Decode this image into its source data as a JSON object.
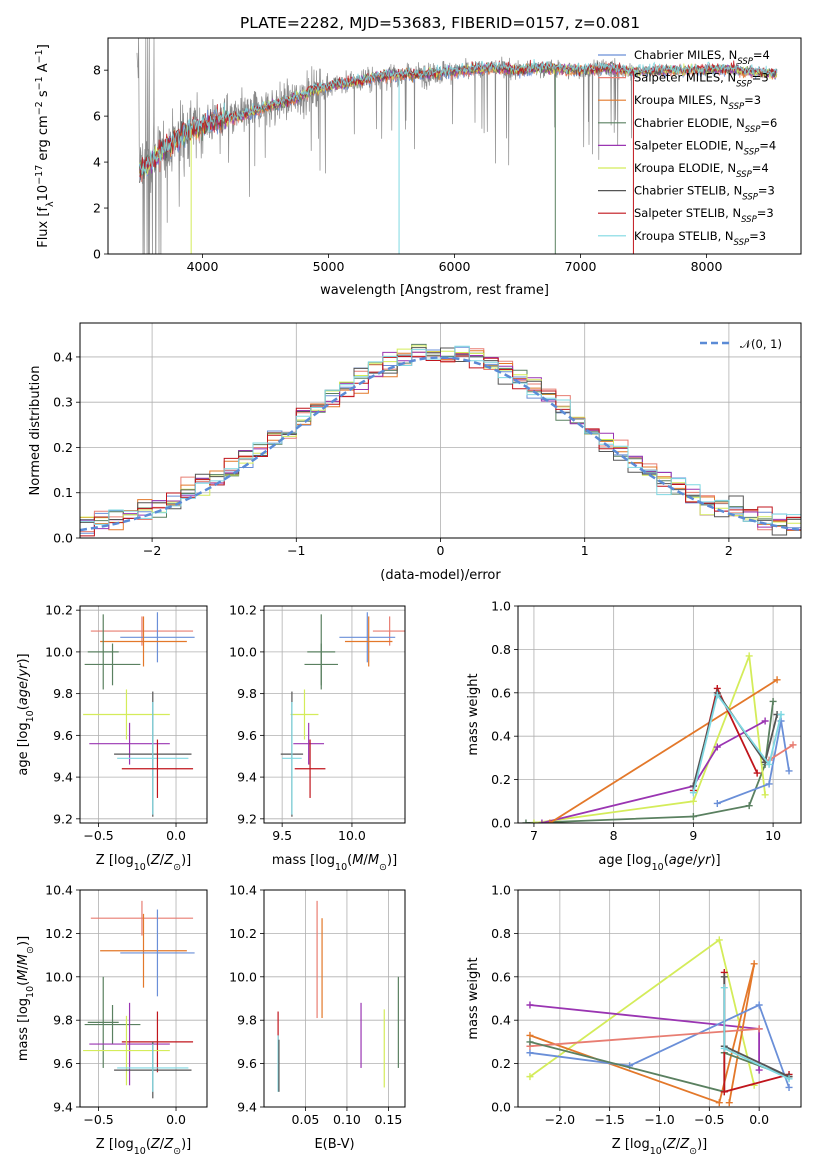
{
  "figure": {
    "title": "PLATE=2282, MJD=53683, FIBERID=0157, z=0.081"
  },
  "colors": {
    "Chabrier MILES": "#6a8fd8",
    "Salpeter MILES": "#e87d72",
    "Kroupa MILES": "#e3782a",
    "Chabrier ELODIE": "#5a8060",
    "Salpeter ELODIE": "#9a35b2",
    "Kroupa ELODIE": "#d4ec5a",
    "Chabrier STELIB": "#555555",
    "Salpeter STELIB": "#c0151c",
    "Kroupa STELIB": "#7fd8e2",
    "data": "#888888",
    "gauss": "#5b8bd6"
  },
  "chart_data": [
    {
      "id": "spectrum",
      "type": "line",
      "xlabel": "wavelength [Angstrom, rest frame]",
      "ylabel": "Flux [f_λ 10^-17 erg cm^-2 s^-1 A^-1]",
      "xlim": [
        3250,
        8750
      ],
      "ylim": [
        0,
        9.4
      ],
      "xticks": [
        4000,
        5000,
        6000,
        7000,
        8000
      ],
      "yticks": [
        0,
        2,
        4,
        6,
        8
      ],
      "legend_position": "right",
      "legend": [
        {
          "name": "Chabrier MILES",
          "nssp": "4"
        },
        {
          "name": "Salpeter MILES",
          "nssp": "3"
        },
        {
          "name": "Kroupa MILES",
          "nssp": "3"
        },
        {
          "name": "Chabrier ELODIE",
          "nssp": "6"
        },
        {
          "name": "Salpeter ELODIE",
          "nssp": "4"
        },
        {
          "name": "Kroupa ELODIE",
          "nssp": "4"
        },
        {
          "name": "Chabrier STELIB",
          "nssp": "3"
        },
        {
          "name": "Salpeter STELIB",
          "nssp": "3"
        },
        {
          "name": "Kroupa STELIB",
          "nssp": "3"
        }
      ],
      "continuum": [
        [
          3500,
          3.6
        ],
        [
          3700,
          4.6
        ],
        [
          3900,
          5.4
        ],
        [
          4100,
          5.8
        ],
        [
          4300,
          6.0
        ],
        [
          4500,
          6.4
        ],
        [
          4700,
          6.7
        ],
        [
          4900,
          7.2
        ],
        [
          5100,
          7.4
        ],
        [
          5300,
          7.6
        ],
        [
          5500,
          7.8
        ],
        [
          5700,
          7.8
        ],
        [
          5900,
          7.9
        ],
        [
          6100,
          8.0
        ],
        [
          6300,
          8.1
        ],
        [
          6500,
          8.0
        ],
        [
          6700,
          8.1
        ],
        [
          7000,
          8.0
        ],
        [
          7200,
          8.1
        ],
        [
          7400,
          7.95
        ],
        [
          7800,
          8.0
        ],
        [
          8200,
          8.05
        ],
        [
          8500,
          7.85
        ]
      ],
      "data_range": [
        3480,
        7430
      ]
    },
    {
      "id": "residuals",
      "type": "bar",
      "xlabel": "(data-model)/error",
      "ylabel": "Normed distribution",
      "xlim": [
        -2.5,
        2.5
      ],
      "ylim": [
        0,
        0.475
      ],
      "xticks": [
        -2,
        -1,
        0,
        1,
        2
      ],
      "yticks": [
        0.0,
        0.1,
        0.2,
        0.3,
        0.4
      ],
      "legend": [
        "𝒩(0, 1)"
      ],
      "legend_position": "top-right",
      "bin_width": 0.1
    },
    {
      "id": "age_vs_Z",
      "type": "scatter",
      "xlabel": "Z [log10(Z/Z☉)]",
      "ylabel": "age [log10(age/yr)]",
      "xlim": [
        -0.62,
        0.2
      ],
      "ylim": [
        9.18,
        10.22
      ],
      "xticks": [
        -0.5,
        0.0
      ],
      "yticks": [
        9.2,
        9.4,
        9.6,
        9.8,
        10.0,
        10.2
      ],
      "points": [
        {
          "model": "Salpeter MILES",
          "x": -0.22,
          "xerr": 0.33,
          "y": 10.1,
          "yerr": 0.07
        },
        {
          "model": "Chabrier MILES",
          "x": -0.12,
          "xerr": 0.24,
          "y": 10.07,
          "yerr": 0.12
        },
        {
          "model": "Kroupa MILES",
          "x": -0.21,
          "xerr": 0.28,
          "y": 10.05,
          "yerr": 0.12
        },
        {
          "model": "Chabrier ELODIE",
          "x": -0.47,
          "xerr": 0.1,
          "y": 10.0,
          "yerr": 0.18
        },
        {
          "model": "Chabrier ELODIE",
          "x": -0.41,
          "xerr": 0.18,
          "y": 9.94,
          "yerr": 0.1
        },
        {
          "model": "Kroupa ELODIE",
          "x": -0.32,
          "xerr": 0.28,
          "y": 9.7,
          "yerr": 0.12
        },
        {
          "model": "Salpeter ELODIE",
          "x": -0.3,
          "xerr": 0.26,
          "y": 9.56,
          "yerr": 0.1
        },
        {
          "model": "Chabrier STELIB",
          "x": -0.15,
          "xerr": 0.25,
          "y": 9.51,
          "yerr": 0.3
        },
        {
          "model": "Kroupa STELIB",
          "x": -0.15,
          "xerr": 0.23,
          "y": 9.49,
          "yerr": 0.27
        },
        {
          "model": "Salpeter STELIB",
          "x": -0.12,
          "xerr": 0.23,
          "y": 9.44,
          "yerr": 0.14
        }
      ]
    },
    {
      "id": "age_vs_mass",
      "type": "scatter",
      "xlabel": "mass [log10(M/M☉)]",
      "ylabel": "",
      "xlim": [
        9.37,
        10.38
      ],
      "ylim": [
        9.18,
        10.22
      ],
      "xticks": [
        9.5,
        10.0
      ],
      "yticks": [
        9.2,
        9.4,
        9.6,
        9.8,
        10.0,
        10.2
      ],
      "points": [
        {
          "model": "Salpeter MILES",
          "x": 10.27,
          "xerr": 0.12,
          "y": 10.1,
          "yerr": 0.07
        },
        {
          "model": "Chabrier MILES",
          "x": 10.11,
          "xerr": 0.2,
          "y": 10.07,
          "yerr": 0.12
        },
        {
          "model": "Kroupa MILES",
          "x": 10.12,
          "xerr": 0.17,
          "y": 10.05,
          "yerr": 0.12
        },
        {
          "model": "Chabrier ELODIE",
          "x": 9.78,
          "xerr": 0.1,
          "y": 10.0,
          "yerr": 0.18
        },
        {
          "model": "Chabrier ELODIE",
          "x": 9.78,
          "xerr": 0.12,
          "y": 9.94,
          "yerr": 0.1
        },
        {
          "model": "Kroupa ELODIE",
          "x": 9.66,
          "xerr": 0.1,
          "y": 9.7,
          "yerr": 0.12
        },
        {
          "model": "Salpeter ELODIE",
          "x": 9.69,
          "xerr": 0.11,
          "y": 9.56,
          "yerr": 0.1
        },
        {
          "model": "Chabrier STELIB",
          "x": 9.57,
          "xerr": 0.08,
          "y": 9.51,
          "yerr": 0.3
        },
        {
          "model": "Kroupa STELIB",
          "x": 9.57,
          "xerr": 0.07,
          "y": 9.49,
          "yerr": 0.27
        },
        {
          "model": "Salpeter STELIB",
          "x": 9.7,
          "xerr": 0.11,
          "y": 9.44,
          "yerr": 0.14
        }
      ]
    },
    {
      "id": "weight_vs_age",
      "type": "line",
      "xlabel": "age [log10(age/yr)]",
      "ylabel": "mass weight",
      "xlim": [
        6.8,
        10.35
      ],
      "ylim": [
        0,
        1.0
      ],
      "xticks": [
        7,
        8,
        9,
        10
      ],
      "yticks": [
        0.0,
        0.2,
        0.4,
        0.6,
        0.8,
        1.0
      ],
      "series": [
        {
          "model": "Chabrier ELODIE",
          "x": [
            6.9,
            9.0,
            9.7,
            9.9,
            10.0
          ],
          "y": [
            0.0,
            0.03,
            0.08,
            0.27,
            0.56
          ]
        },
        {
          "model": "Kroupa ELODIE",
          "x": [
            7.0,
            9.0,
            9.7,
            9.9
          ],
          "y": [
            0.0,
            0.1,
            0.77,
            0.13
          ]
        },
        {
          "model": "Salpeter ELODIE",
          "x": [
            7.1,
            9.0,
            9.3,
            9.9
          ],
          "y": [
            0.0,
            0.17,
            0.35,
            0.47
          ]
        },
        {
          "model": "Kroupa MILES",
          "x": [
            7.2,
            10.05
          ],
          "y": [
            0.0,
            0.66
          ]
        },
        {
          "model": "Chabrier MILES",
          "x": [
            9.3,
            9.95,
            10.1,
            10.2
          ],
          "y": [
            0.09,
            0.18,
            0.47,
            0.24
          ]
        },
        {
          "model": "Salpeter MILES",
          "x": [
            9.95,
            10.25
          ],
          "y": [
            0.29,
            0.36
          ]
        },
        {
          "model": "Salpeter STELIB",
          "x": [
            9.0,
            9.3,
            9.8
          ],
          "y": [
            0.15,
            0.62,
            0.23
          ]
        },
        {
          "model": "Chabrier STELIB",
          "x": [
            9.0,
            9.3,
            9.9,
            10.05
          ],
          "y": [
            0.17,
            0.6,
            0.28,
            0.5
          ]
        },
        {
          "model": "Kroupa STELIB",
          "x": [
            9.0,
            9.3,
            9.95,
            10.1
          ],
          "y": [
            0.14,
            0.59,
            0.27,
            0.5
          ]
        }
      ]
    },
    {
      "id": "mass_vs_Z",
      "type": "scatter",
      "xlabel": "Z [log10(Z/Z☉)]",
      "ylabel": "mass [log10(M/M☉)]",
      "xlim": [
        -0.62,
        0.2
      ],
      "ylim": [
        9.4,
        10.4
      ],
      "xticks": [
        -0.5,
        0.0
      ],
      "yticks": [
        9.4,
        9.6,
        9.8,
        10.0,
        10.2,
        10.4
      ],
      "points": [
        {
          "model": "Salpeter MILES",
          "x": -0.22,
          "xerr": 0.33,
          "y": 10.27,
          "yerr": 0.08
        },
        {
          "model": "Kroupa MILES",
          "x": -0.21,
          "xerr": 0.28,
          "y": 10.12,
          "yerr": 0.17
        },
        {
          "model": "Chabrier MILES",
          "x": -0.12,
          "xerr": 0.24,
          "y": 10.11,
          "yerr": 0.2
        },
        {
          "model": "Chabrier ELODIE",
          "x": -0.47,
          "xerr": 0.1,
          "y": 9.79,
          "yerr": 0.21
        },
        {
          "model": "Chabrier ELODIE",
          "x": -0.41,
          "xerr": 0.18,
          "y": 9.78,
          "yerr": 0.09
        },
        {
          "model": "Salpeter ELODIE",
          "x": -0.3,
          "xerr": 0.26,
          "y": 9.69,
          "yerr": 0.19
        },
        {
          "model": "Salpeter STELIB",
          "x": -0.12,
          "xerr": 0.23,
          "y": 9.7,
          "yerr": 0.14
        },
        {
          "model": "Kroupa ELODIE",
          "x": -0.32,
          "xerr": 0.28,
          "y": 9.66,
          "yerr": 0.16
        },
        {
          "model": "Chabrier STELIB",
          "x": -0.15,
          "xerr": 0.25,
          "y": 9.57,
          "yerr": 0.13
        },
        {
          "model": "Kroupa STELIB",
          "x": -0.15,
          "xerr": 0.23,
          "y": 9.58,
          "yerr": 0.11
        }
      ]
    },
    {
      "id": "mass_vs_ebv",
      "type": "scatter",
      "xlabel": "E(B-V)",
      "ylabel": "",
      "xlim": [
        0.0,
        0.17
      ],
      "ylim": [
        9.4,
        10.4
      ],
      "xticks": [
        0.05,
        0.1,
        0.15
      ],
      "yticks": [
        9.4,
        9.6,
        9.8,
        10.0,
        10.2,
        10.4
      ],
      "points": [
        {
          "model": "Salpeter MILES",
          "x": 0.064,
          "y": 10.08,
          "yerr": 0.27
        },
        {
          "model": "Kroupa MILES",
          "x": 0.07,
          "y": 10.04,
          "yerr": 0.23
        },
        {
          "model": "Salpeter STELIB",
          "x": 0.017,
          "y": 9.71,
          "yerr": 0.13
        },
        {
          "model": "Kroupa STELIB",
          "x": 0.017,
          "y": 9.6,
          "yerr": 0.13
        },
        {
          "model": "Chabrier STELIB",
          "x": 0.018,
          "y": 9.59,
          "yerr": 0.12
        },
        {
          "model": "Salpeter ELODIE",
          "x": 0.117,
          "y": 9.73,
          "yerr": 0.15
        },
        {
          "model": "Kroupa ELODIE",
          "x": 0.145,
          "y": 9.67,
          "yerr": 0.18
        },
        {
          "model": "Chabrier ELODIE",
          "x": 0.162,
          "y": 9.79,
          "yerr": 0.21
        }
      ]
    },
    {
      "id": "weight_vs_Z",
      "type": "line",
      "xlabel": "Z [log10(Z/Z☉)]",
      "ylabel": "mass weight",
      "xlim": [
        -2.42,
        0.42
      ],
      "ylim": [
        0,
        1.0
      ],
      "xticks": [
        -2.0,
        -1.5,
        -1.0,
        -0.5,
        0.0
      ],
      "yticks": [
        0.0,
        0.2,
        0.4,
        0.6,
        0.8,
        1.0
      ],
      "series": [
        {
          "model": "Kroupa ELODIE",
          "x": [
            -2.3,
            -0.4,
            -0.05
          ],
          "y": [
            0.14,
            0.77,
            0.1
          ]
        },
        {
          "model": "Salpeter ELODIE",
          "x": [
            -2.3,
            0.0,
            0.0
          ],
          "y": [
            0.47,
            0.36,
            0.17
          ]
        },
        {
          "model": "Kroupa MILES",
          "x": [
            -2.3,
            -0.4,
            -0.05,
            -0.3
          ],
          "y": [
            0.33,
            0.02,
            0.66,
            0.02
          ]
        },
        {
          "model": "Chabrier MILES",
          "x": [
            -2.3,
            -1.3,
            0.0,
            0.3
          ],
          "y": [
            0.25,
            0.19,
            0.47,
            0.09
          ]
        },
        {
          "model": "Salpeter MILES",
          "x": [
            -2.3,
            0.0
          ],
          "y": [
            0.28,
            0.36
          ]
        },
        {
          "model": "Chabrier ELODIE",
          "x": [
            -2.3,
            -0.35,
            -0.35,
            0.3
          ],
          "y": [
            0.3,
            0.07,
            0.25,
            0.14
          ]
        },
        {
          "model": "Salpeter STELIB",
          "x": [
            -0.35,
            -0.35,
            0.3
          ],
          "y": [
            0.62,
            0.07,
            0.15
          ]
        },
        {
          "model": "Chabrier STELIB",
          "x": [
            -0.35,
            -0.35,
            0.3
          ],
          "y": [
            0.6,
            0.28,
            0.14
          ]
        },
        {
          "model": "Kroupa STELIB",
          "x": [
            -0.35,
            -0.35,
            0.3
          ],
          "y": [
            0.55,
            0.27,
            0.13
          ]
        }
      ]
    }
  ]
}
